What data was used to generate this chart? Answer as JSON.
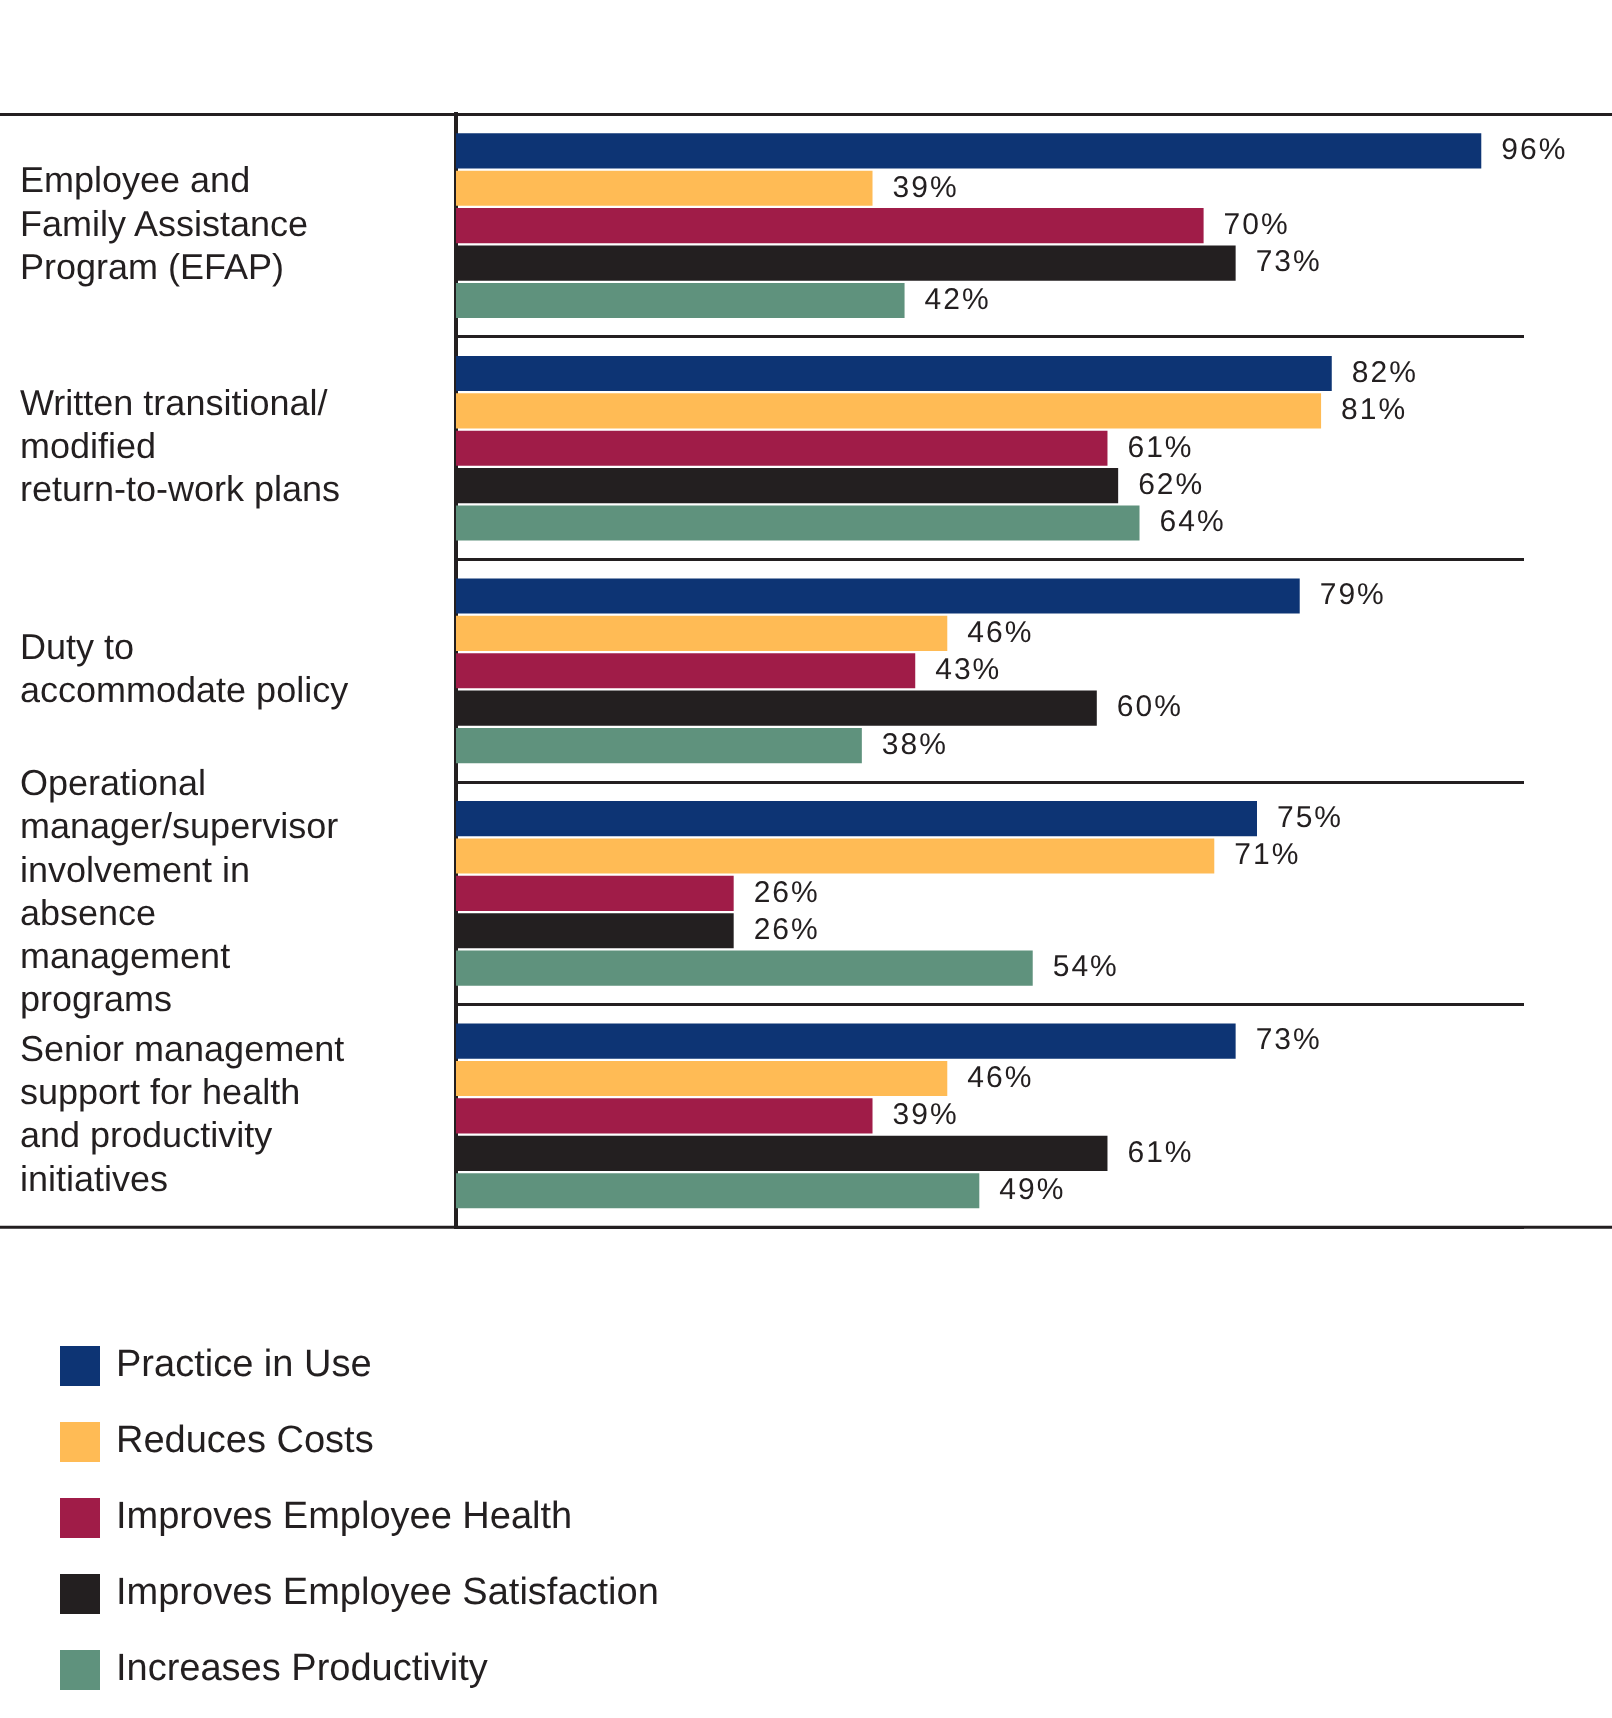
{
  "chart_data": {
    "type": "bar",
    "orientation": "horizontal",
    "categories": [
      "Employee and Family Assistance Program (EFAP)",
      "Written transitional/ modified return-to-work plans",
      "Duty to accommodate policy",
      "Operational manager/supervisor involvement in absence management programs",
      "Senior management support for health and productivity initiatives"
    ],
    "series": [
      {
        "name": "Practice in Use",
        "color": "#0d3474",
        "values": [
          96,
          82,
          79,
          75,
          73
        ],
        "value_labels": [
          "96%",
          "82%",
          "79%",
          "75%",
          "73%"
        ]
      },
      {
        "name": "Reduces Costs",
        "color": "#ffbb55",
        "values": [
          39,
          81,
          46,
          71,
          46
        ],
        "value_labels": [
          "39%",
          "81%",
          "46%",
          "71%",
          "46%"
        ]
      },
      {
        "name": "Improves Employee Health",
        "color": "#a01c48",
        "values": [
          70,
          61,
          43,
          26,
          39
        ],
        "value_labels": [
          "70%",
          "61%",
          "43%",
          "26%",
          "39%"
        ]
      },
      {
        "name": "Improves Employee Satisfaction",
        "color": "#231f20",
        "values": [
          73,
          62,
          60,
          26,
          61
        ],
        "value_labels": [
          "73%",
          "62%",
          "60%",
          "26%",
          "61%"
        ]
      },
      {
        "name": "Increases Productivity",
        "color": "#5f927d",
        "values": [
          42,
          64,
          38,
          54,
          49
        ],
        "value_labels": [
          "42%",
          "64%",
          "38%",
          "54%",
          "49%"
        ]
      }
    ],
    "xlim": [
      0,
      100
    ],
    "grid": "y",
    "legend": "bottom",
    "tick_labels": "y"
  }
}
